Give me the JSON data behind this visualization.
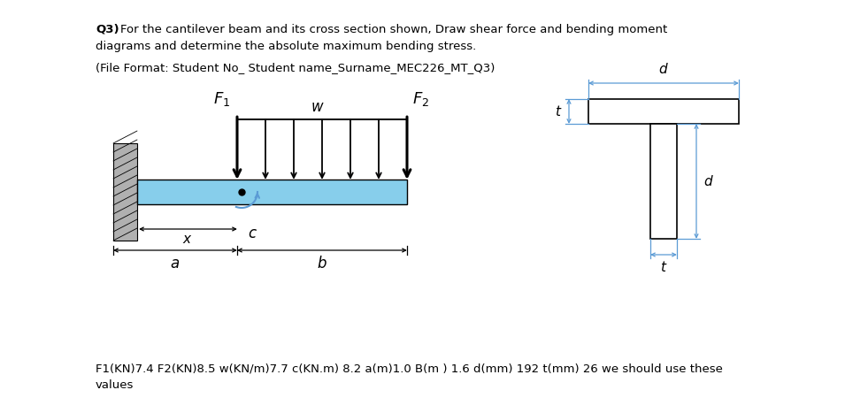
{
  "bg_color": "#ffffff",
  "beam_color": "#87CEEB",
  "wall_color": "#b0b0b0",
  "dim_color": "#5b9bd5",
  "text_color": "#000000",
  "title_bold": "Q3)",
  "title_line1_rest": " For the cantilever beam and its cross section shown, Draw shear force and bending moment",
  "title_line2": "diagrams and determine the absolute maximum bending stress.",
  "subtitle": "(File Format: Student No_ Student name_Surname_MEC226_MT_Q3)",
  "bottom_line1": "F1(KN)7.4 F2(KN)8.5 w(KN/m)7.7 c(KN.m) 8.2 a(m)1.0 B(m ) 1.6 d(mm) 192 t(mm) 26 we should use these",
  "bottom_line2": "values"
}
